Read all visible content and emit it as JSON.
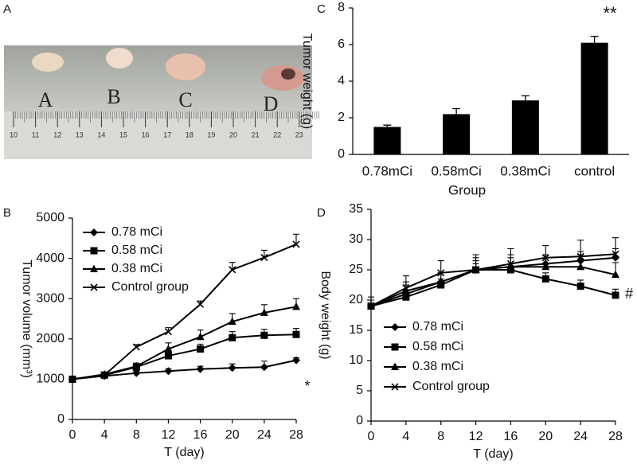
{
  "panel_labels": [
    "A",
    "B",
    "C",
    "D"
  ],
  "photo": {
    "labels": [
      "A",
      "B",
      "C",
      "D"
    ],
    "ruler": [
      10,
      11,
      12,
      13,
      14,
      15,
      16,
      17,
      18,
      19,
      20,
      21,
      22,
      23
    ]
  },
  "chart_data": [
    {
      "type": "bar",
      "y_label": "Tumor weight (g)",
      "x_label": "Group",
      "categories": [
        "0.78mCi",
        "0.58mCi",
        "0.38mCi",
        "control"
      ],
      "values": [
        1.5,
        2.2,
        2.95,
        6.1
      ],
      "errors": [
        0.1,
        0.3,
        0.25,
        0.35
      ],
      "color": "#000000",
      "ylim": [
        0,
        8
      ],
      "yticks": [
        0,
        2,
        4,
        6,
        8
      ],
      "annotation": "**"
    },
    {
      "type": "line",
      "y_label": "Tumor volume (mm³)",
      "x_label": "T (day)",
      "x": [
        0,
        4,
        8,
        12,
        16,
        20,
        24,
        28
      ],
      "xlim": [
        0,
        28
      ],
      "xticks": [
        0,
        4,
        8,
        12,
        16,
        20,
        24,
        28
      ],
      "ylim": [
        0,
        5000
      ],
      "yticks": [
        0,
        1000,
        2000,
        3000,
        4000,
        5000
      ],
      "legend": "upper left",
      "annotation": "*",
      "series": [
        {
          "name": "0.78 mCi",
          "marker": "diamond",
          "color": "#000000",
          "values": [
            1000,
            1080,
            1150,
            1200,
            1250,
            1280,
            1300,
            1470
          ],
          "errors": [
            50,
            50,
            50,
            60,
            70,
            100,
            150,
            60
          ]
        },
        {
          "name": "0.58 mCi",
          "marker": "square",
          "color": "#000000",
          "values": [
            1000,
            1100,
            1300,
            1580,
            1750,
            2030,
            2090,
            2110
          ],
          "errors": [
            50,
            60,
            80,
            100,
            120,
            150,
            150,
            150
          ]
        },
        {
          "name": "0.38 mCi",
          "marker": "triangle",
          "color": "#000000",
          "values": [
            1000,
            1120,
            1320,
            1750,
            2050,
            2430,
            2650,
            2800
          ],
          "errors": [
            50,
            60,
            80,
            150,
            170,
            200,
            200,
            200
          ]
        },
        {
          "name": "Control group",
          "marker": "x",
          "color": "#000000",
          "values": [
            1000,
            1100,
            1800,
            2180,
            2860,
            3720,
            4020,
            4350
          ],
          "errors": [
            50,
            60,
            60,
            100,
            80,
            180,
            180,
            250
          ]
        }
      ]
    },
    {
      "type": "line",
      "y_label": "Body weight (g)",
      "x_label": "T (day)",
      "x": [
        0,
        4,
        8,
        12,
        16,
        20,
        24,
        28
      ],
      "xlim": [
        0,
        28
      ],
      "xticks": [
        0,
        4,
        8,
        12,
        16,
        20,
        24,
        28
      ],
      "ylim": [
        0,
        35
      ],
      "yticks": [
        0,
        5,
        10,
        15,
        20,
        25,
        30,
        35
      ],
      "legend": "lower left",
      "annotation": "#",
      "series": [
        {
          "name": "0.78 mCi",
          "marker": "diamond",
          "color": "#000000",
          "values": [
            19,
            21,
            23,
            25,
            25.5,
            26,
            26.5,
            27
          ],
          "errors": [
            1,
            1.5,
            1.5,
            1.5,
            1.5,
            1.5,
            1.5,
            1.5
          ]
        },
        {
          "name": "0.58 mCi",
          "marker": "square",
          "color": "#000000",
          "values": [
            19,
            20.5,
            22.5,
            25,
            25,
            23.5,
            22.3,
            20.8
          ],
          "errors": [
            1,
            1,
            1,
            1,
            1,
            1,
            1,
            1
          ]
        },
        {
          "name": "0.38 mCi",
          "marker": "triangle",
          "color": "#000000",
          "values": [
            19,
            21.5,
            23,
            25,
            25.5,
            25.5,
            25.5,
            24.2
          ],
          "errors": [
            1,
            1.5,
            1.5,
            2,
            2,
            2,
            2,
            2
          ]
        },
        {
          "name": "Control group",
          "marker": "x",
          "color": "#000000",
          "values": [
            19,
            22,
            24.5,
            25,
            26,
            27,
            27.2,
            27.6
          ],
          "errors": [
            1.5,
            2,
            2,
            2.5,
            2.5,
            2,
            2.7,
            2.7
          ]
        }
      ]
    }
  ]
}
